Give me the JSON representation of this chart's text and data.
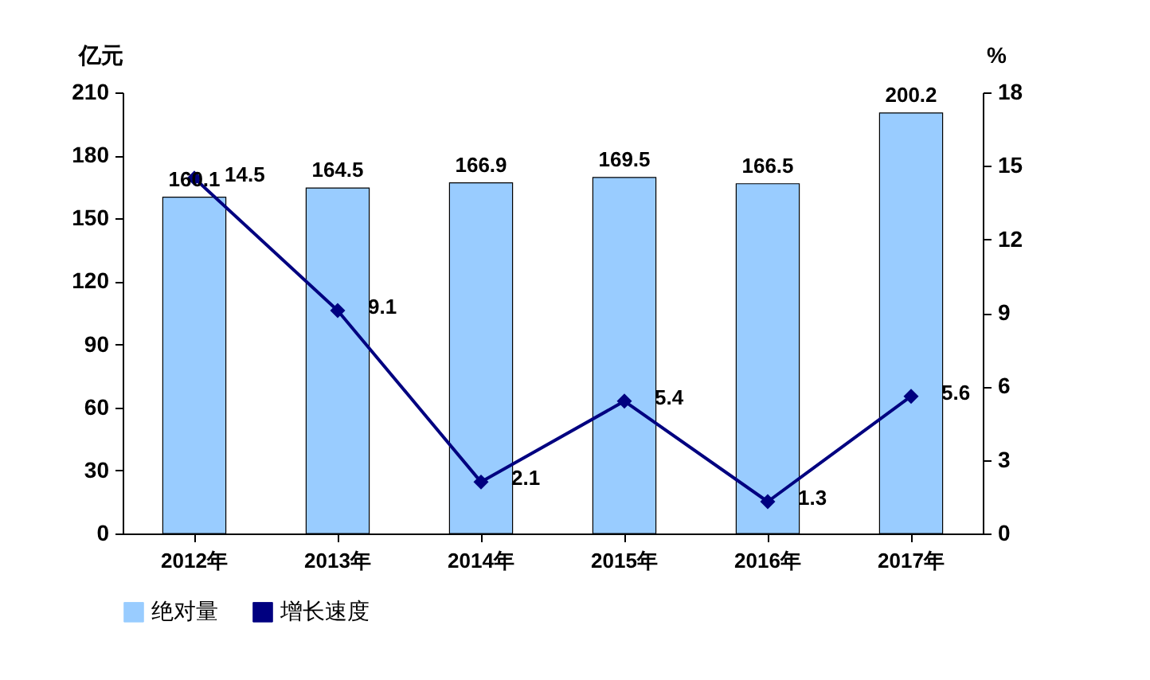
{
  "chart_data": {
    "type": "bar",
    "categories": [
      "2012年",
      "2013年",
      "2014年",
      "2015年",
      "2016年",
      "2017年"
    ],
    "ylabel": "亿元",
    "y2label": "%",
    "ylim": [
      0,
      210
    ],
    "yticks": [
      0,
      30,
      60,
      90,
      120,
      150,
      180,
      210
    ],
    "y2lim": [
      0,
      18
    ],
    "y2ticks": [
      0,
      3,
      6,
      9,
      12,
      15,
      18
    ],
    "series": [
      {
        "name": "绝对量",
        "color": "#99ccff",
        "values": [
          160.1,
          164.5,
          166.9,
          169.5,
          166.5,
          200.2
        ]
      },
      {
        "name": "增长速度",
        "type": "line",
        "axis": "y2",
        "color": "#000080",
        "values": [
          14.5,
          9.1,
          2.1,
          5.4,
          1.3,
          5.6
        ]
      }
    ],
    "data_labels": true,
    "marker": "diamond",
    "legend": "bottom",
    "grid": false
  }
}
